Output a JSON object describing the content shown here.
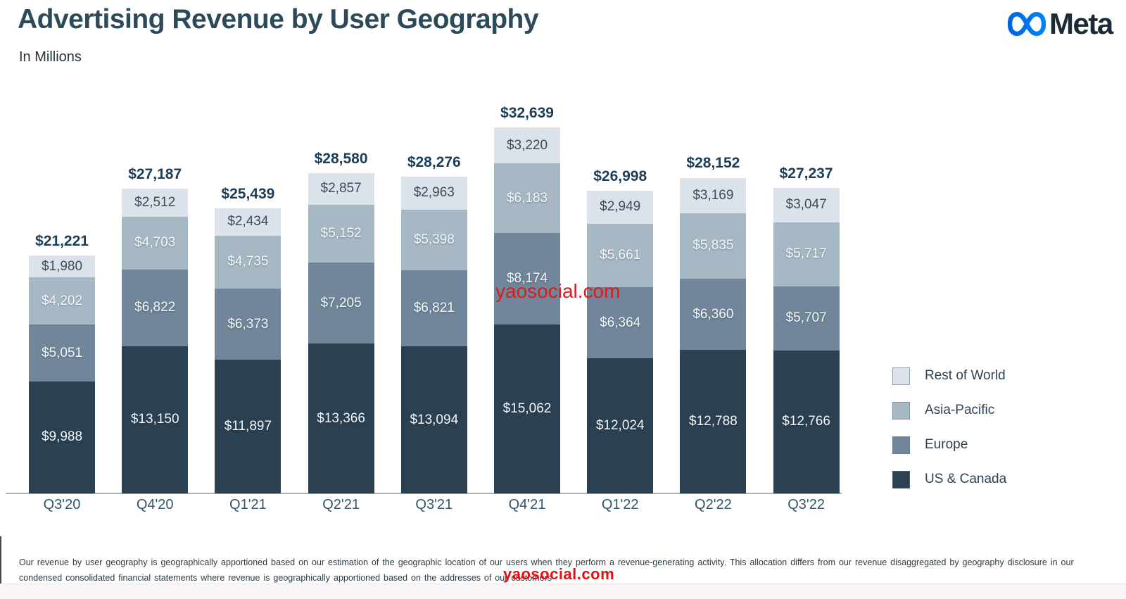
{
  "page": {
    "title": "Advertising Revenue by User Geography",
    "subtitle": "In Millions",
    "brand_wordmark": "Meta",
    "watermark_center": "yaosocial.com",
    "watermark_bottom": "yaosocial.com",
    "footnote_lines": [
      "Our revenue by user geography is geographically apportioned based on our estimation of the geographic location of our users when they perform a revenue-generating activity. This allocation differs from our revenue disaggregated by geography disclosure in our",
      "condensed consolidated financial statements where revenue is geographically apportioned based on the addresses of our customers"
    ]
  },
  "colors": {
    "title_text": "#2d4a5a",
    "total_label": "#1c3d57",
    "axis_line": "#a9b0b6",
    "watermark_red": "#e01a1a",
    "meta_blue_dark": "#0064e0",
    "meta_blue_light": "#0082fb",
    "us_canada": "#2b4152",
    "europe": "#71869a",
    "asia_pacific": "#a7b8c5",
    "rest_of_world": "#dbe2e9"
  },
  "legend": [
    {
      "label": "Rest of World",
      "color": "#dbe2e9"
    },
    {
      "label": "Asia-Pacific",
      "color": "#a7b8c5"
    },
    {
      "label": "Europe",
      "color": "#71869a"
    },
    {
      "label": "US & Canada",
      "color": "#2b4152"
    }
  ],
  "chart_data": {
    "type": "bar",
    "stacked": true,
    "title": "Advertising Revenue by User Geography",
    "units_label": "In Millions",
    "value_prefix": "$",
    "grid": false,
    "legend_position": "right",
    "categories": [
      "Q3'20",
      "Q4'20",
      "Q1'21",
      "Q2'21",
      "Q3'21",
      "Q4'21",
      "Q1'22",
      "Q2'22",
      "Q3'22"
    ],
    "series": [
      {
        "name": "US & Canada",
        "key": "us-canada",
        "color": "#2b4152",
        "text": "light",
        "values": [
          9988,
          13150,
          11897,
          13366,
          13094,
          15062,
          12024,
          12788,
          12766
        ]
      },
      {
        "name": "Europe",
        "key": "europe",
        "color": "#71869a",
        "text": "light",
        "values": [
          5051,
          6822,
          6373,
          7205,
          6821,
          8174,
          6364,
          6360,
          5707
        ]
      },
      {
        "name": "Asia-Pacific",
        "key": "asia-pacific",
        "color": "#a7b8c5",
        "text": "light",
        "values": [
          4202,
          4703,
          4735,
          5152,
          5398,
          6183,
          5661,
          5835,
          5717
        ]
      },
      {
        "name": "Rest of World",
        "key": "rest-of-world",
        "color": "#dbe2e9",
        "text": "dark",
        "values": [
          1980,
          2512,
          2434,
          2857,
          2963,
          3220,
          2949,
          3169,
          3047
        ]
      }
    ],
    "totals": [
      21221,
      27187,
      25439,
      28580,
      28276,
      32639,
      26998,
      28152,
      27237
    ]
  }
}
